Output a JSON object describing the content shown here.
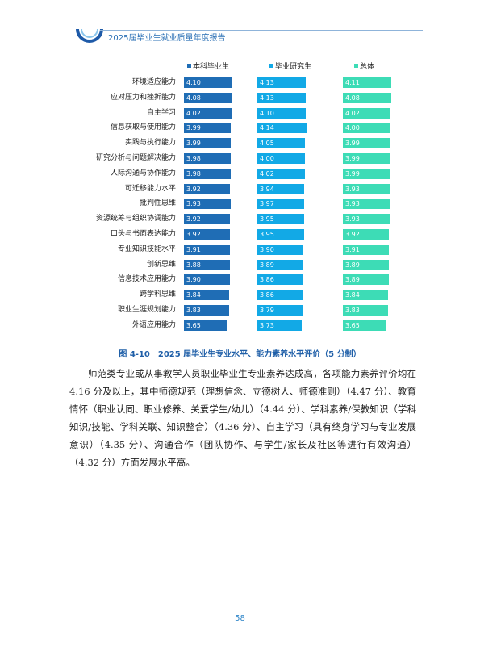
{
  "header": {
    "title": "2025届毕业生就业质量年度报告"
  },
  "chart_data": {
    "type": "bar",
    "title": "",
    "xlabel": "",
    "ylabel": "",
    "xlim": [
      0,
      5
    ],
    "legend_position": "top",
    "categories": [
      "环境适应能力",
      "应对压力和挫折能力",
      "自主学习",
      "信息获取与使用能力",
      "实践与执行能力",
      "研究分析与问题解决能力",
      "人际沟通与协作能力",
      "可迁移能力水平",
      "批判性思维",
      "资源统筹与组织协调能力",
      "口头与书面表达能力",
      "专业知识技能水平",
      "创新思维",
      "信息技术应用能力",
      "跨学科思维",
      "职业生涯规划能力",
      "外语应用能力"
    ],
    "series": [
      {
        "name": "本科毕业生",
        "color": "#1f6db5",
        "values": [
          4.1,
          4.08,
          4.02,
          3.99,
          3.99,
          3.98,
          3.98,
          3.92,
          3.93,
          3.92,
          3.92,
          3.91,
          3.88,
          3.9,
          3.84,
          3.83,
          3.65
        ],
        "labels": [
          "4.10",
          "4.08",
          "4.02",
          "3.99",
          "3.99",
          "3.98",
          "3.98",
          "3.92",
          "3.93",
          "3.92",
          "3.92",
          "3.91",
          "3.88",
          "3.90",
          "3.84",
          "3.83",
          "3.65"
        ]
      },
      {
        "name": "毕业研究生",
        "color": "#12a9e6",
        "values": [
          4.13,
          4.13,
          4.1,
          4.14,
          4.05,
          4.0,
          4.02,
          3.94,
          3.97,
          3.95,
          3.95,
          3.9,
          3.89,
          3.86,
          3.86,
          3.79,
          3.73
        ],
        "labels": [
          "4.13",
          "4.13",
          "4.10",
          "4.14",
          "4.05",
          "4.00",
          "4.02",
          "3.94",
          "3.97",
          "3.95",
          "3.95",
          "3.90",
          "3.89",
          "3.86",
          "3.86",
          "3.79",
          "3.73"
        ]
      },
      {
        "name": "总体",
        "color": "#3ddcb6",
        "values": [
          4.11,
          4.08,
          4.02,
          4.0,
          3.99,
          3.99,
          3.99,
          3.93,
          3.93,
          3.93,
          3.92,
          3.91,
          3.89,
          3.89,
          3.84,
          3.83,
          3.65
        ],
        "labels": [
          "4.11",
          "4.08",
          "4.02",
          "4.00",
          "3.99",
          "3.99",
          "3.99",
          "3.93",
          "3.93",
          "3.93",
          "3.92",
          "3.91",
          "3.89",
          "3.89",
          "3.84",
          "3.83",
          "3.65"
        ]
      }
    ]
  },
  "caption": "图 4-10　2025 届毕业生专业水平、能力素养水平评价（5 分制）",
  "paragraph": "师范类专业或从事教学人员职业毕业生专业素养达成高，各项能力素养评价均在 4.16 分及以上，其中师德规范（理想信念、立德树人、师德准则）（4.47 分）、教育情怀（职业认同、职业修养、关爱学生/幼儿）（4.44 分）、学科素养/保教知识（学科知识/技能、学科关联、知识整合）（4.36 分）、自主学习（具有终身学习与专业发展意识）（4.35 分）、沟通合作（团队协作、与学生/家长及社区等进行有效沟通）（4.32 分）方面发展水平高。",
  "page_number": "58"
}
